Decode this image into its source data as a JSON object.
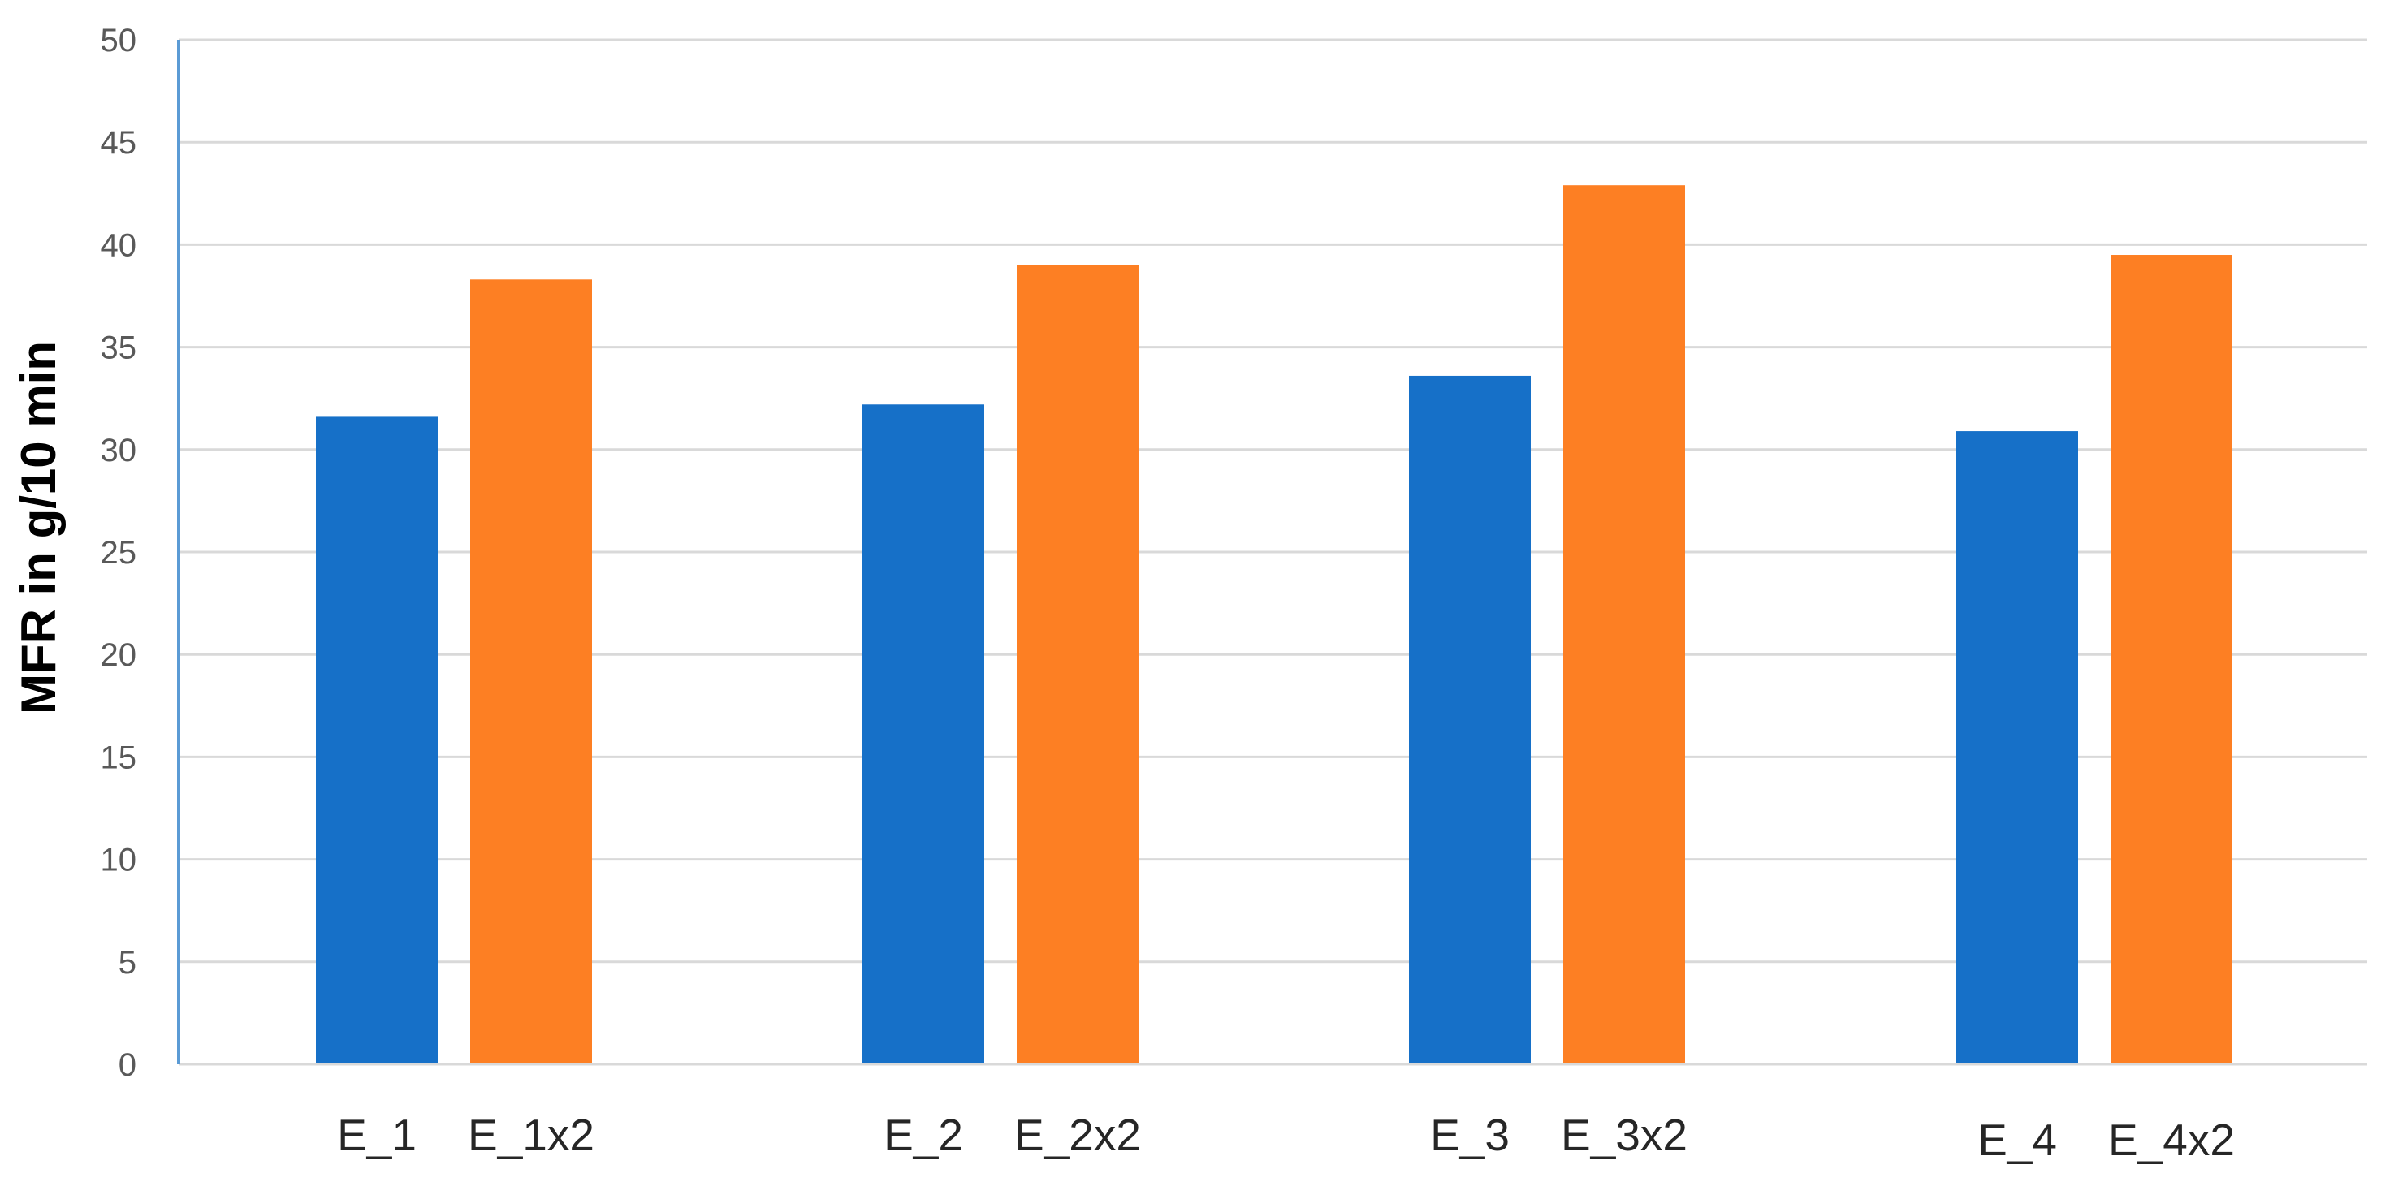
{
  "chart_data": {
    "type": "bar",
    "title": "",
    "xlabel": "",
    "ylabel": "MFR in g/10 min",
    "ylim": [
      0,
      50
    ],
    "ytick_step": 5,
    "grid": true,
    "legend": "none",
    "categories": [
      "E_1",
      "E_1x2",
      "E_2",
      "E_2x2",
      "E_3",
      "E_3x2",
      "E_4",
      "E_4x2"
    ],
    "groups": [
      {
        "bars": [
          {
            "label": "E_1",
            "value": 31.6,
            "color": "#1670c8"
          },
          {
            "label": "E_1x2",
            "value": 38.3,
            "color": "#fd7f23"
          }
        ]
      },
      {
        "bars": [
          {
            "label": "E_2",
            "value": 32.2,
            "color": "#1670c8"
          },
          {
            "label": "E_2x2",
            "value": 39.0,
            "color": "#fd7f23"
          }
        ]
      },
      {
        "bars": [
          {
            "label": "E_3",
            "value": 33.6,
            "color": "#1670c8"
          },
          {
            "label": "E_3x2",
            "value": 42.9,
            "color": "#fd7f23"
          }
        ]
      },
      {
        "bars": [
          {
            "label": "E_4",
            "value": 30.9,
            "color": "#1670c8"
          },
          {
            "label": "E_4x2",
            "value": 39.5,
            "color": "#fd7f23"
          }
        ]
      }
    ]
  },
  "colors": {
    "series_base": "#1670c8",
    "series_x2": "#fd7f23",
    "axis_line": "#5b9bd5",
    "gridline": "#d9d9d9"
  }
}
